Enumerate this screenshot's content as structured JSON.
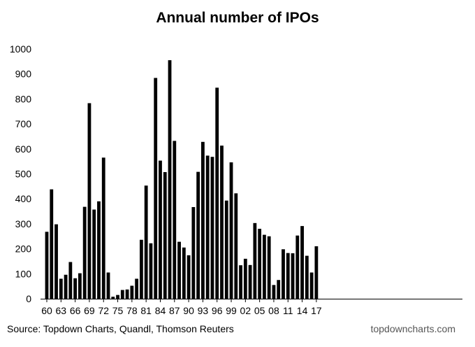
{
  "header": {
    "title": "Annual number of IPOs"
  },
  "footer": {
    "source": "Source: Topdown Charts, Quandl, Thomson Reuters",
    "site": "topdowncharts.com"
  },
  "colors": {
    "bar": "#000000",
    "axis": "#000000",
    "background": "#ffffff"
  },
  "chart_data": {
    "type": "bar",
    "title": "Annual number of IPOs",
    "xlabel": "",
    "ylabel": "",
    "ylim": [
      0,
      1000
    ],
    "yticks": [
      "0",
      "100",
      "200",
      "300",
      "400",
      "500",
      "600",
      "700",
      "800",
      "900",
      "1000"
    ],
    "xticks": [
      "60",
      "63",
      "66",
      "69",
      "72",
      "75",
      "78",
      "81",
      "84",
      "87",
      "90",
      "93",
      "96",
      "99",
      "02",
      "05",
      "08",
      "11",
      "14",
      "17"
    ],
    "grid": false,
    "legend": "none",
    "categories": [
      "1960",
      "1961",
      "1962",
      "1963",
      "1964",
      "1965",
      "1966",
      "1967",
      "1968",
      "1969",
      "1970",
      "1971",
      "1972",
      "1973",
      "1974",
      "1975",
      "1976",
      "1977",
      "1978",
      "1979",
      "1980",
      "1981",
      "1982",
      "1983",
      "1984",
      "1985",
      "1986",
      "1987",
      "1988",
      "1989",
      "1990",
      "1991",
      "1992",
      "1993",
      "1994",
      "1995",
      "1996",
      "1997",
      "1998",
      "1999",
      "2000",
      "2001",
      "2002",
      "2003",
      "2004",
      "2005",
      "2006",
      "2007",
      "2008",
      "2009",
      "2010",
      "2011",
      "2012",
      "2013",
      "2014",
      "2015",
      "2016",
      "2017"
    ],
    "values": [
      268,
      438,
      298,
      80,
      96,
      147,
      82,
      102,
      368,
      783,
      357,
      390,
      565,
      105,
      8,
      15,
      35,
      37,
      52,
      80,
      236,
      453,
      222,
      884,
      553,
      507,
      955,
      632,
      228,
      205,
      174,
      367,
      508,
      628,
      573,
      568,
      845,
      613,
      393,
      546,
      422,
      134,
      160,
      135,
      303,
      280,
      256,
      250,
      55,
      75,
      198,
      183,
      182,
      253,
      291,
      172,
      105,
      210
    ]
  }
}
